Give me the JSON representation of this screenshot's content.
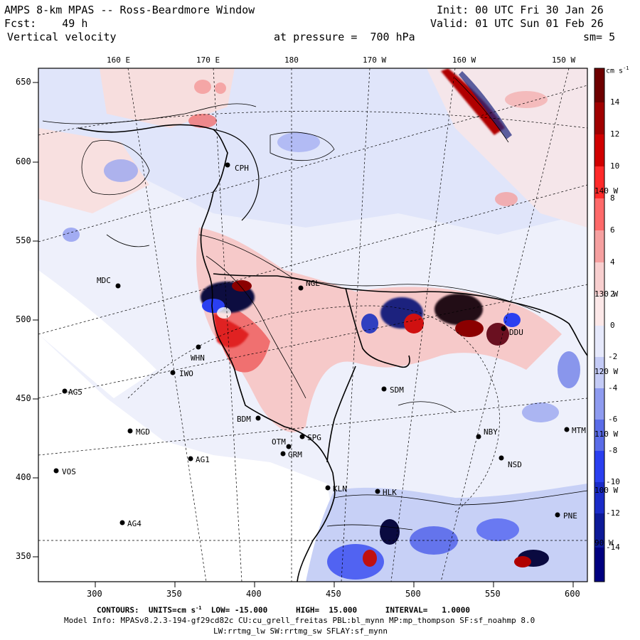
{
  "header": {
    "title": "AMPS 8-km MPAS -- Ross-Beardmore Window",
    "forecast": "Fcst:    49 h",
    "field": "Vertical velocity",
    "level": "at pressure =  700 hPa",
    "init": "Init: 00 UTC Fri 30 Jan 26",
    "valid": "Valid: 01 UTC Sun 01 Feb 26",
    "smoothing": "sm= 5"
  },
  "axes": {
    "x_ticks": [
      "300",
      "350",
      "400",
      "450",
      "500",
      "550",
      "600"
    ],
    "y_ticks": [
      "350",
      "400",
      "450",
      "500",
      "550",
      "600",
      "650"
    ],
    "lon_labels": [
      "160 E",
      "170 E",
      "180",
      "170 W",
      "160 W",
      "150 W"
    ],
    "edge_lon_labels": [
      "140 W",
      "130 W",
      "120 W",
      "110 W",
      "100 W",
      "90 W"
    ]
  },
  "colorbar": {
    "units": "cm s",
    "units_sup": "-1",
    "labels": [
      "14",
      "12",
      "10",
      "8",
      "6",
      "4",
      "2",
      "0",
      "-2",
      "-4",
      "-6",
      "-8",
      "-10",
      "-12",
      "-14"
    ],
    "colors": {
      "pos_strong": "#8b0000",
      "pos_mid": "#ff2020",
      "pos_weak": "#fcd6d6",
      "neutral": "#ffffff",
      "neg_weak": "#d7defa",
      "neg_mid": "#2a3ff0",
      "neg_strong": "#000080"
    }
  },
  "stations": [
    {
      "name": "MDC"
    },
    {
      "name": "NGL"
    },
    {
      "name": "WHN"
    },
    {
      "name": "IWO"
    },
    {
      "name": "AG5"
    },
    {
      "name": "SDM"
    },
    {
      "name": "BDM"
    },
    {
      "name": "MGD"
    },
    {
      "name": "OTM"
    },
    {
      "name": "SPG"
    },
    {
      "name": "GRM"
    },
    {
      "name": "AG1"
    },
    {
      "name": "VOS"
    },
    {
      "name": "NBY"
    },
    {
      "name": "MTM"
    },
    {
      "name": "NSD"
    },
    {
      "name": "KLN"
    },
    {
      "name": "HLK"
    },
    {
      "name": "AG4"
    },
    {
      "name": "PNE"
    },
    {
      "name": "CPH"
    },
    {
      "name": "DDU"
    }
  ],
  "footer": {
    "contours": "CONTOURS:  UNITS=cm s",
    "contours_sup": "-1",
    "contours_rest": "  LOW= -15.000      HIGH=  15.000      INTERVAL=   1.0000",
    "model_info": "Model Info: MPASv8.2.3-194-gf29cd82c CU:cu_grell_freitas PBL:bl_mynn MP:mp_thompson SF:sf_noahmp 8.0",
    "model_info2": "LW:rrtmg_lw SW:rrtmg_sw SFLAY:sf_mynn"
  }
}
